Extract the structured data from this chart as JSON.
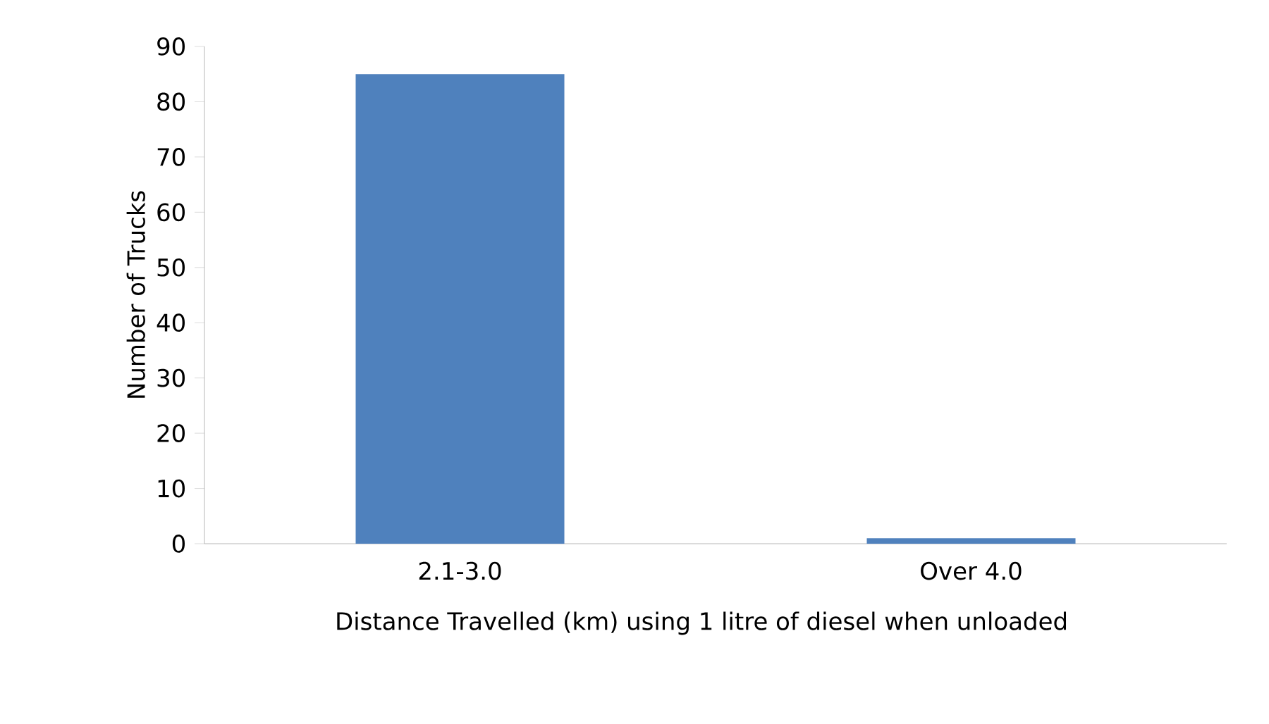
{
  "chart_data": {
    "type": "bar",
    "categories": [
      "2.1-3.0",
      "Over 4.0"
    ],
    "values": [
      85,
      1
    ],
    "color": "#4f81bd",
    "xlabel": "Distance Travelled (km) using 1 litre of diesel when unloaded",
    "ylabel": "Number of Trucks",
    "ylim": [
      0,
      90
    ],
    "yticks": [
      0,
      10,
      20,
      30,
      40,
      50,
      60,
      70,
      80,
      90
    ],
    "grid": false
  }
}
